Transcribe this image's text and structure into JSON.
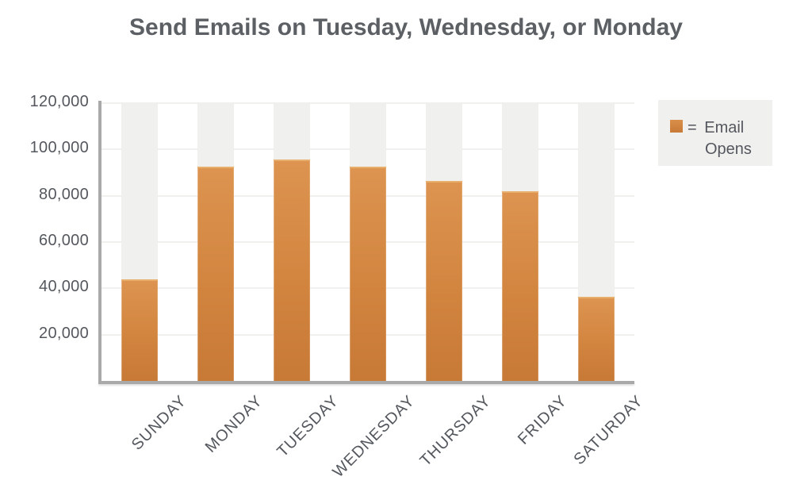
{
  "header": {
    "title": "Send Emails on Tuesday, Wednesday, or Monday"
  },
  "legend": {
    "label": "= Email Opens",
    "swatch": "orange-square",
    "position": "right"
  },
  "colors": {
    "bar_gradient_top": "#dc9450",
    "bar_gradient_bottom": "#c77936",
    "bar_top_edge": "#e7ae6c",
    "column_background": "#f0f0ef",
    "gridline": "#f0f0ee",
    "axis": "#a9a9a9",
    "text": "#54585e",
    "legend_background": "#f0f0ef",
    "page_background": "#ffffff"
  },
  "chart_data": {
    "type": "bar",
    "title": "Send Emails on Tuesday, Wednesday, or Monday",
    "series_name": "Email Opens",
    "categories": [
      "SUNDAY",
      "MONDAY",
      "TUESDAY",
      "WEDNESDAY",
      "THURSDAY",
      "FRIDAY",
      "SATURDAY"
    ],
    "values": [
      44000,
      92500,
      95500,
      92500,
      86500,
      82000,
      36500
    ],
    "xlabel": "",
    "ylabel": "",
    "ylim": [
      0,
      120000
    ],
    "yticks": [
      {
        "value": 120000,
        "label": "120,000"
      },
      {
        "value": 100000,
        "label": "100,000"
      },
      {
        "value": 80000,
        "label": "80,000"
      },
      {
        "value": 60000,
        "label": "60,000"
      },
      {
        "value": 40000,
        "label": "40,000"
      },
      {
        "value": 20000,
        "label": "20,000"
      }
    ],
    "grid": true,
    "legend_position": "right",
    "bar_style": "orange vertical gradient bars over full-height light-gray background columns",
    "x_tick_rotation_deg": -45
  }
}
